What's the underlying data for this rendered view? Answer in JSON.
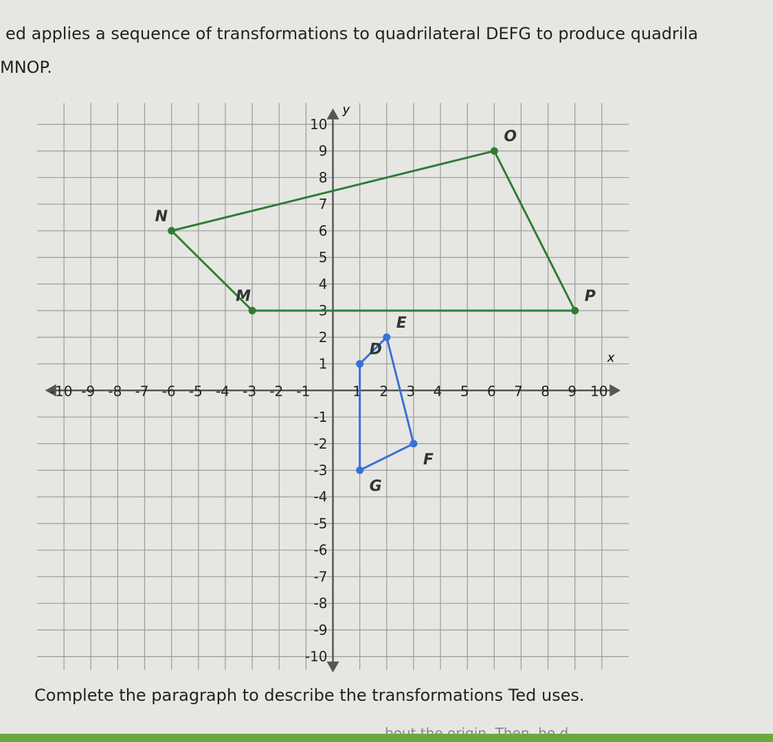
{
  "text": {
    "intro": "ed applies a sequence of transformations to quadrilateral DEFG to produce quadrila",
    "intro_end": "MNOP.",
    "prompt": "Complete the paragraph to describe the transformations Ted uses.",
    "footer": "bout the origin. Then, he d"
  },
  "chart_data": {
    "type": "polygon",
    "x_label": "x",
    "y_label": "y",
    "xlim": [
      -11,
      11
    ],
    "ylim": [
      -10.5,
      10.8
    ],
    "xticks": [
      -10,
      -9,
      -8,
      -7,
      -6,
      -5,
      -4,
      -3,
      -2,
      -1,
      1,
      2,
      3,
      4,
      5,
      6,
      7,
      8,
      9,
      10
    ],
    "yticks": [
      -10,
      -9,
      -8,
      -7,
      -6,
      -5,
      -4,
      -3,
      -2,
      -1,
      1,
      2,
      3,
      4,
      5,
      6,
      7,
      8,
      9,
      10
    ],
    "grid": true,
    "series": [
      {
        "color": "#3a6fd8",
        "labels": [
          "D",
          "E",
          "F",
          "G"
        ],
        "x": [
          1,
          2,
          3,
          1
        ],
        "values": [
          1,
          2,
          -2,
          -3
        ]
      },
      {
        "color": "#2e7d32",
        "labels": [
          "M",
          "N",
          "O",
          "P"
        ],
        "x": [
          -3,
          -6,
          6,
          9
        ],
        "values": [
          3,
          6,
          9,
          3
        ]
      }
    ]
  }
}
